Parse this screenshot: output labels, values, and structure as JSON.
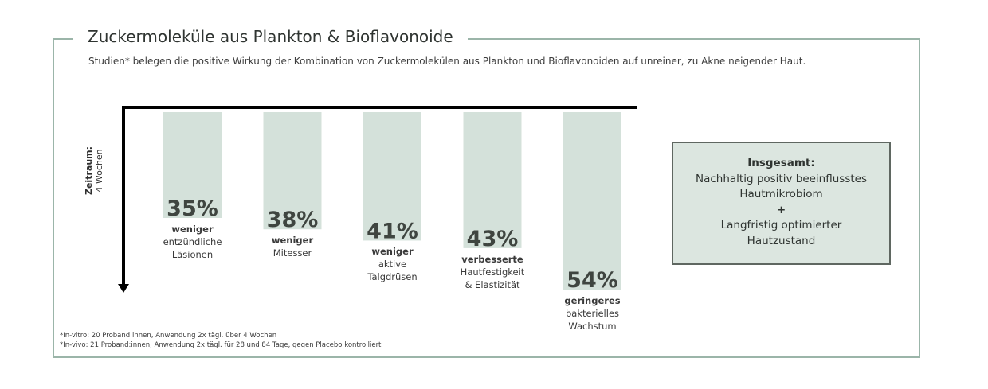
{
  "header": {
    "title": "Zuckermoleküle aus Plankton & Bioflavonoide",
    "subtitle": "Studien* belegen die positive Wirkung der Kombination von Zuckermolekülen aus Plankton und Bioflavonoiden auf unreiner, zu Akne neigender Haut."
  },
  "chart_data": {
    "type": "bar",
    "orientation": "downward",
    "categories": [
      "weniger entzündliche Läsionen",
      "weniger Mitesser",
      "weniger aktive Talgdrüsen",
      "verbesserte Hautfestigkeit & Elastizität",
      "geringeres bakterielles Wachstum"
    ],
    "values": [
      35,
      38,
      41,
      43,
      54
    ],
    "value_labels": [
      "35%",
      "38%",
      "41%",
      "43%",
      "54%"
    ],
    "bar_labels": [
      {
        "keyword": "weniger",
        "rest": "entzündliche\nLäsionen"
      },
      {
        "keyword": "weniger",
        "rest": "Mitesser"
      },
      {
        "keyword": "weniger",
        "rest": "aktive\nTalgdrüsen"
      },
      {
        "keyword": "verbesserte",
        "rest": "Hautfestigkeit\n& Elastizität"
      },
      {
        "keyword": "geringeres",
        "rest": "bakterielles\nWachstum"
      }
    ],
    "axis_label": {
      "line1": "Zeitraum:",
      "line2": "4 Wochen"
    },
    "ylim": [
      0,
      60
    ],
    "bar_color": "#d4e1da",
    "axis_color": "#000000",
    "value_color": "#3f4540"
  },
  "summary": {
    "heading": "Insgesamt:",
    "line1": "Nachhaltig positiv beeinflusstes",
    "line2": "Hautmikrobiom",
    "plus": "+",
    "line3": "Langfristig optimierter",
    "line4": "Hautzustand"
  },
  "footnotes": {
    "invitro": "*In-vitro: 20 Proband:innen, Anwendung 2x tägl. über 4 Wochen",
    "invivo": "*In-vivo: 21 Proband:innen, Anwendung 2x tägl. für 28 und 84 Tage, gegen Placebo kontrolliert"
  }
}
